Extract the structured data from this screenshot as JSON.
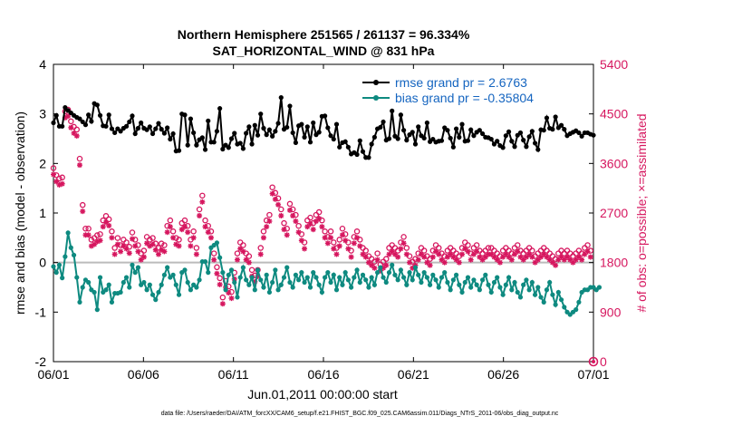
{
  "chart_data": {
    "type": "line",
    "title": [
      "Northern Hemisphere 251565 / 261137 = 96.334%",
      "SAT_HORIZONTAL_WIND @ 831 hPa"
    ],
    "xlabel": "Jun.01,2011 00:00:00 start",
    "ylabel": "rmse and bias (model - observation)",
    "ylabel_right": "# of obs: o=possible; ×=assimilated",
    "footnote": "data file: /Users/raeder/DAI/ATM_forcXX/CAM6_setup/f.e21.FHIST_BGC.f09_025.CAM6assim.011/Diags_NTrS_2011-06/obs_diag_output.nc",
    "x_ticks": [
      "06/01",
      "06/06",
      "06/11",
      "06/16",
      "06/21",
      "06/26",
      "07/01"
    ],
    "y_ticks": [
      "-2",
      "-1",
      "0",
      "1",
      "2",
      "3",
      "4"
    ],
    "y_right_ticks": [
      "0",
      "900",
      "1800",
      "2700",
      "3600",
      "4500",
      "5400"
    ],
    "ylim": [
      -2,
      4
    ],
    "ylim_right": [
      0,
      5400
    ],
    "xlim_days": [
      0,
      30
    ],
    "zero_line": true,
    "legend": [
      "rmse grand pr = 2.6763",
      "bias grand pr = -0.35804"
    ],
    "legend_position": "top-right",
    "colors": {
      "rmse": "#000000",
      "bias": "#0e8a80",
      "obs": "#d6175f",
      "zero": "#bbbbbb"
    },
    "series": [
      {
        "name": "rmse grand pr = 2.6763",
        "values": [
          2.82,
          2.97,
          2.75,
          2.75,
          3.13,
          3.07,
          3.02,
          2.97,
          2.93,
          2.9,
          2.84,
          2.78,
          2.98,
          2.85,
          3.21,
          3.18,
          2.97,
          2.76,
          2.75,
          2.98,
          2.7,
          2.62,
          2.7,
          2.65,
          2.71,
          2.75,
          2.84,
          2.96,
          2.6,
          2.71,
          2.82,
          2.71,
          2.68,
          2.74,
          2.6,
          2.7,
          2.81,
          2.69,
          2.61,
          2.72,
          2.49,
          2.6,
          2.25,
          2.26,
          3.0,
          2.98,
          2.37,
          2.9,
          2.62,
          2.37,
          2.48,
          2.52,
          2.28,
          2.86,
          2.43,
          2.43,
          2.65,
          3.11,
          2.29,
          2.37,
          2.32,
          2.5,
          2.61,
          2.39,
          2.41,
          2.3,
          2.61,
          2.74,
          2.39,
          2.77,
          2.57,
          3.0,
          2.71,
          2.58,
          2.68,
          2.55,
          2.65,
          2.81,
          3.33,
          2.69,
          2.73,
          3.16,
          2.62,
          2.42,
          2.76,
          2.79,
          2.53,
          2.74,
          2.43,
          2.82,
          2.58,
          2.63,
          2.95,
          2.96,
          2.72,
          2.56,
          2.49,
          2.79,
          2.33,
          2.42,
          2.44,
          2.33,
          2.19,
          2.22,
          2.18,
          2.46,
          2.24,
          2.12,
          2.12,
          2.39,
          2.53,
          2.7,
          2.73,
          2.84,
          2.47,
          2.5,
          3.06,
          2.55,
          2.5,
          2.98,
          2.67,
          2.47,
          2.58,
          2.63,
          2.39,
          2.74,
          2.56,
          2.51,
          2.82,
          2.44,
          2.49,
          2.43,
          2.45,
          2.46,
          2.72,
          2.67,
          2.51,
          2.33,
          2.7,
          2.53,
          2.79,
          2.45,
          2.46,
          2.68,
          2.56,
          2.63,
          2.67,
          2.6,
          2.53,
          2.52,
          2.49,
          2.39,
          2.45,
          2.36,
          2.32,
          2.56,
          2.64,
          2.45,
          2.34,
          2.57,
          2.62,
          2.47,
          2.34,
          2.54,
          2.65,
          2.41,
          2.28,
          2.68,
          2.67,
          2.92,
          2.71,
          2.69,
          2.94,
          2.72,
          2.77,
          2.69,
          2.56,
          2.6,
          2.63,
          2.66,
          2.62,
          2.55,
          2.62,
          2.62,
          2.59,
          2.57
        ]
      },
      {
        "name": "bias grand pr = -0.35804",
        "values": [
          -0.08,
          -0.2,
          -0.05,
          -0.31,
          0.12,
          0.6,
          0.3,
          0.15,
          -0.3,
          -0.8,
          -0.5,
          -0.35,
          -0.4,
          -0.55,
          -0.6,
          -0.95,
          -0.3,
          -0.6,
          -0.55,
          -0.45,
          -0.8,
          -0.62,
          -0.62,
          -0.6,
          -0.4,
          -0.3,
          -0.5,
          -0.05,
          -0.2,
          -0.1,
          -0.45,
          -0.4,
          -0.55,
          -0.45,
          -0.65,
          -0.75,
          -0.6,
          -0.45,
          -0.25,
          -0.1,
          -0.3,
          -0.25,
          -0.45,
          -0.65,
          -0.2,
          -0.15,
          -0.4,
          -0.55,
          -0.45,
          -0.5,
          -0.35,
          0.02,
          0.02,
          -0.2,
          0.3,
          0.35,
          0.4,
          0.1,
          -0.2,
          -0.55,
          -0.25,
          -0.15,
          -0.4,
          -0.7,
          -0.3,
          -0.1,
          -0.35,
          -0.45,
          -0.3,
          -0.55,
          -0.15,
          -0.35,
          -0.5,
          -0.25,
          -0.6,
          -0.4,
          -0.15,
          -0.55,
          -0.45,
          -0.3,
          -0.1,
          -0.4,
          -0.5,
          -0.25,
          -0.35,
          -0.2,
          -0.4,
          -0.3,
          -0.5,
          -0.2,
          -0.3,
          -0.45,
          -0.6,
          -0.3,
          -0.2,
          -0.4,
          -0.25,
          -0.55,
          -0.3,
          -0.45,
          -0.2,
          -0.35,
          -0.5,
          -0.3,
          -0.15,
          -0.4,
          -0.25,
          -0.35,
          -0.5,
          -0.3,
          -0.45,
          -0.2,
          -0.1,
          -0.3,
          -0.4,
          -0.2,
          -0.05,
          -0.25,
          -0.35,
          -0.15,
          -0.3,
          -0.45,
          -0.2,
          -0.35,
          -0.1,
          -0.25,
          -0.4,
          -0.2,
          -0.3,
          -0.45,
          -0.25,
          -0.35,
          -0.5,
          -0.3,
          -0.2,
          -0.4,
          -0.55,
          -0.35,
          -0.25,
          -0.45,
          -0.6,
          -0.4,
          -0.3,
          -0.5,
          -0.35,
          -0.45,
          -0.55,
          -0.35,
          -0.25,
          -0.45,
          -0.6,
          -0.4,
          -0.3,
          -0.5,
          -0.65,
          -0.45,
          -0.3,
          -0.55,
          -0.4,
          -0.6,
          -0.7,
          -0.45,
          -0.35,
          -0.55,
          -0.4,
          -0.65,
          -0.5,
          -0.7,
          -0.8,
          -0.55,
          -0.4,
          -0.65,
          -0.85,
          -0.6,
          -0.75,
          -0.9,
          -1.0,
          -1.05,
          -1.0,
          -0.95,
          -0.8,
          -0.6,
          -0.55,
          -0.55,
          -0.5,
          -0.5,
          -0.55,
          -0.5
        ]
      },
      {
        "name": "",
        "values": [
          3450,
          3320,
          3260,
          3280,
          4480,
          4510,
          4300,
          4200,
          4150,
          3620,
          2780,
          2350,
          2350,
          2150,
          2180,
          2230,
          2250,
          2500,
          2580,
          2520,
          2300,
          2000,
          2180,
          2050,
          2150,
          2100,
          2020,
          2280,
          2150,
          2050,
          1900,
          1950,
          2200,
          2150,
          2180,
          2080,
          2000,
          2080,
          2050,
          2400,
          2500,
          2300,
          2180,
          2150,
          2450,
          2500,
          2400,
          2150,
          2300,
          2000,
          2700,
          2950,
          2500,
          2400,
          2300,
          1900,
          1650,
          1450,
          1100,
          1400,
          1300,
          1200,
          1550,
          1900,
          2100,
          2050,
          1900,
          1850,
          1600,
          1500,
          1600,
          2000,
          2300,
          2500,
          2600,
          3100,
          3000,
          2900,
          2700,
          2450,
          2350,
          2800,
          2700,
          2600,
          2400,
          2250,
          2100,
          2500,
          2550,
          2450,
          2600,
          2650,
          2500,
          2300,
          2200,
          2300,
          2100,
          2000,
          2150,
          2350,
          2250,
          2100,
          1950,
          2200,
          2300,
          2150,
          2000,
          1950,
          1850,
          1800,
          1750,
          1900,
          1700,
          1750,
          1800,
          2000,
          2050,
          2000,
          1950,
          2100,
          2200,
          2000,
          1850,
          1750,
          1800,
          1900,
          2000,
          1950,
          1850,
          1800,
          1950,
          2050,
          2000,
          1900,
          1850,
          1950,
          2000,
          1950,
          1900,
          1850,
          2000,
          2100,
          2050,
          1900,
          2000,
          2050,
          1950,
          1900,
          1950,
          2000,
          2000,
          1950,
          1900,
          1850,
          1950,
          2000,
          1950,
          1900,
          2000,
          2050,
          1950,
          1900,
          1950,
          2000,
          1950,
          1850,
          1900,
          1950,
          2000,
          1950,
          1900,
          1850,
          1800,
          1900,
          1950,
          1900,
          1950,
          1900,
          1850,
          1900,
          1950,
          1900,
          2000,
          2050,
          1950
        ]
      }
    ]
  }
}
